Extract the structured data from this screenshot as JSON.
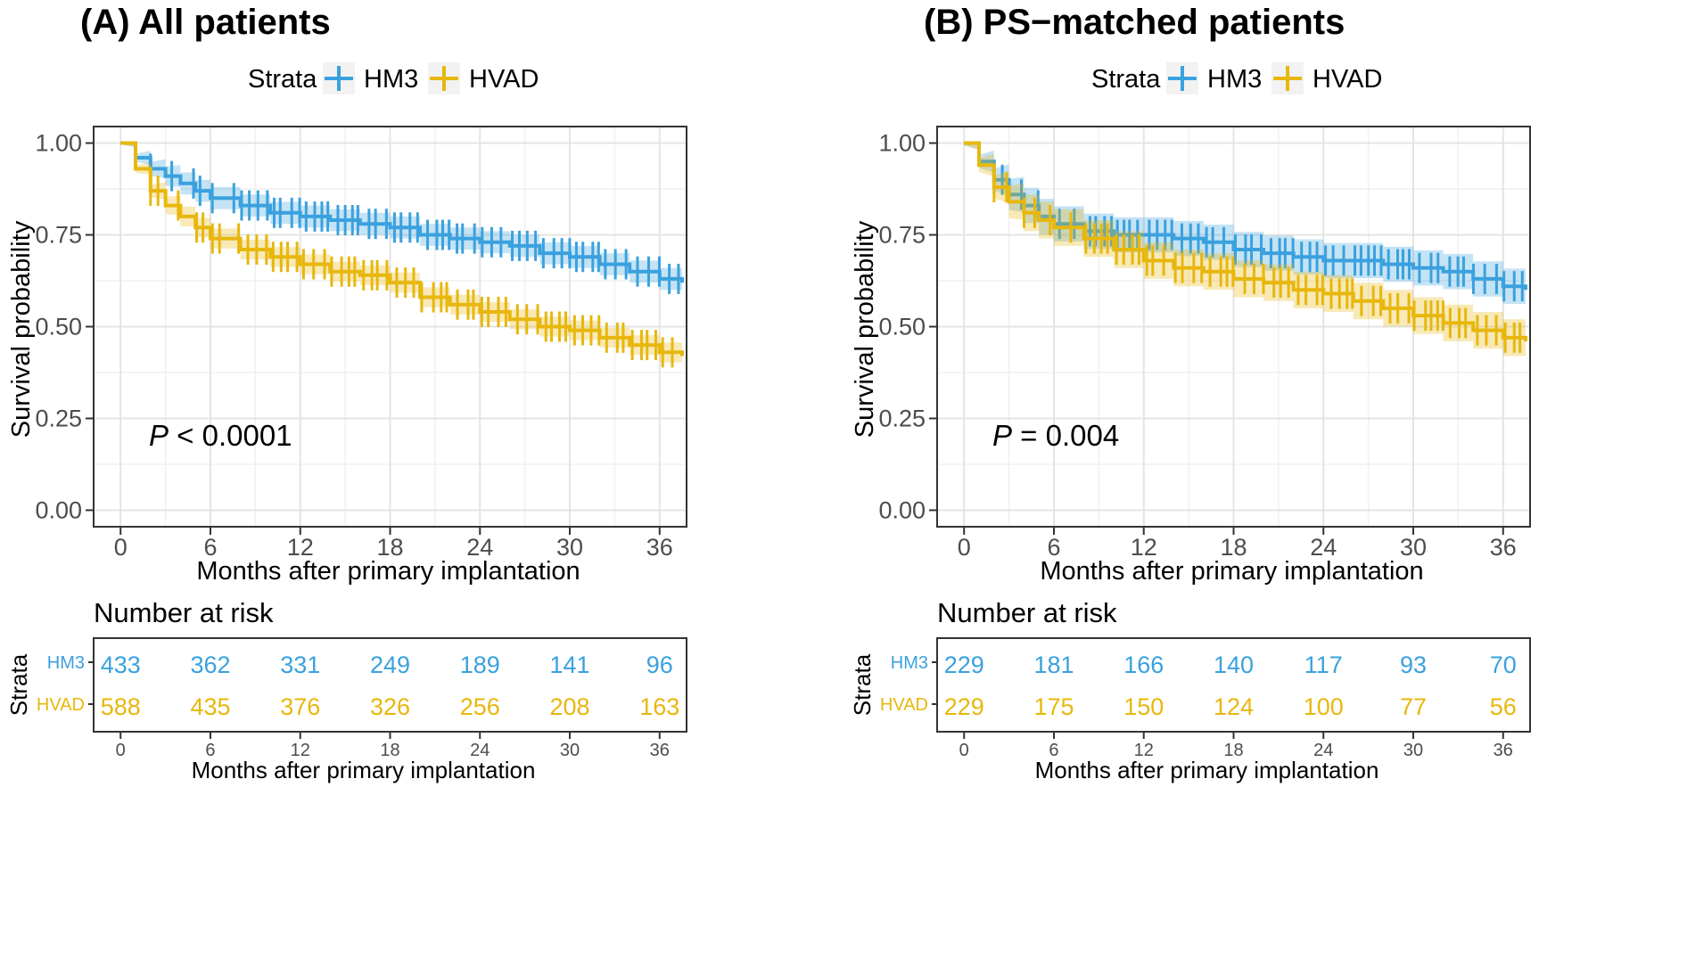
{
  "colors": {
    "hm3": "#3AA1DE",
    "hvad": "#E8B70D",
    "grid": "#e6e6e6",
    "panel_border": "#333333"
  },
  "chart_data": [
    {
      "type": "line",
      "title": "(A) All patients",
      "xlabel": "Months after primary implantation",
      "ylabel": "Survival probability",
      "xlim": [
        0,
        37.5
      ],
      "ylim": [
        0,
        1
      ],
      "x_ticks": [
        0,
        6,
        12,
        18,
        24,
        30,
        36
      ],
      "y_ticks": [
        "0.00",
        "0.25",
        "0.50",
        "0.75",
        "1.00"
      ],
      "grid": true,
      "legend": {
        "title": "Strata",
        "position": "top",
        "entries": [
          "HM3",
          "HVAD"
        ]
      },
      "annotation": {
        "italic": "P",
        "text": " < 0.0001"
      },
      "series": [
        {
          "name": "HM3",
          "color": "#3AA1DE",
          "x": [
            0,
            1,
            2,
            3,
            4,
            5,
            6,
            8,
            10,
            12,
            14,
            16,
            18,
            20,
            22,
            24,
            26,
            28,
            30,
            32,
            34,
            36,
            37.5
          ],
          "y": [
            1.0,
            0.96,
            0.93,
            0.91,
            0.89,
            0.87,
            0.85,
            0.83,
            0.81,
            0.8,
            0.79,
            0.78,
            0.77,
            0.75,
            0.74,
            0.73,
            0.72,
            0.7,
            0.69,
            0.67,
            0.65,
            0.63,
            0.62
          ],
          "ci_halfwidth": 0.03
        },
        {
          "name": "HVAD",
          "color": "#E8B70D",
          "x": [
            0,
            1,
            2,
            3,
            4,
            5,
            6,
            8,
            10,
            12,
            14,
            16,
            18,
            20,
            22,
            24,
            26,
            28,
            30,
            32,
            34,
            36,
            37.5
          ],
          "y": [
            1.0,
            0.93,
            0.87,
            0.83,
            0.8,
            0.77,
            0.74,
            0.71,
            0.69,
            0.67,
            0.65,
            0.64,
            0.62,
            0.58,
            0.56,
            0.54,
            0.52,
            0.5,
            0.49,
            0.47,
            0.45,
            0.43,
            0.42
          ],
          "ci_halfwidth": 0.027
        }
      ]
    },
    {
      "type": "line",
      "title": "(B) PS−matched patients",
      "xlabel": "Months after primary implantation",
      "ylabel": "Survival probability",
      "xlim": [
        0,
        37.5
      ],
      "ylim": [
        0,
        1
      ],
      "x_ticks": [
        0,
        6,
        12,
        18,
        24,
        30,
        36
      ],
      "y_ticks": [
        "0.00",
        "0.25",
        "0.50",
        "0.75",
        "1.00"
      ],
      "grid": true,
      "legend": {
        "title": "Strata",
        "position": "top",
        "entries": [
          "HM3",
          "HVAD"
        ]
      },
      "annotation": {
        "italic": "P",
        "text": " = 0.004"
      },
      "series": [
        {
          "name": "HM3",
          "color": "#3AA1DE",
          "x": [
            0,
            1,
            2,
            3,
            4,
            5,
            6,
            8,
            10,
            12,
            14,
            16,
            18,
            20,
            22,
            24,
            26,
            28,
            30,
            32,
            34,
            36,
            37.5
          ],
          "y": [
            1.0,
            0.95,
            0.9,
            0.86,
            0.83,
            0.8,
            0.78,
            0.76,
            0.75,
            0.75,
            0.74,
            0.73,
            0.71,
            0.7,
            0.69,
            0.68,
            0.68,
            0.67,
            0.66,
            0.65,
            0.63,
            0.61,
            0.6
          ],
          "ci_halfwidth": 0.048
        },
        {
          "name": "HVAD",
          "color": "#E8B70D",
          "x": [
            0,
            1,
            2,
            3,
            4,
            5,
            6,
            8,
            10,
            12,
            14,
            16,
            18,
            20,
            22,
            24,
            26,
            28,
            30,
            32,
            34,
            36,
            37.5
          ],
          "y": [
            1.0,
            0.94,
            0.88,
            0.84,
            0.81,
            0.79,
            0.77,
            0.74,
            0.71,
            0.68,
            0.66,
            0.65,
            0.63,
            0.62,
            0.6,
            0.59,
            0.57,
            0.55,
            0.53,
            0.51,
            0.49,
            0.47,
            0.46
          ],
          "ci_halfwidth": 0.05
        }
      ]
    }
  ],
  "risk_tables": [
    {
      "title": "Number at risk",
      "ylabel": "Strata",
      "xlabel": "Months after primary implantation",
      "x_ticks": [
        0,
        6,
        12,
        18,
        24,
        30,
        36
      ],
      "rows": [
        {
          "label": "HM3",
          "values": [
            "433",
            "362",
            "331",
            "249",
            "189",
            "141",
            "96"
          ]
        },
        {
          "label": "HVAD",
          "values": [
            "588",
            "435",
            "376",
            "326",
            "256",
            "208",
            "163"
          ]
        }
      ]
    },
    {
      "title": "Number at risk",
      "ylabel": "Strata",
      "xlabel": "Months after primary implantation",
      "x_ticks": [
        0,
        6,
        12,
        18,
        24,
        30,
        36
      ],
      "rows": [
        {
          "label": "HM3",
          "values": [
            "229",
            "181",
            "166",
            "140",
            "117",
            "93",
            "70"
          ]
        },
        {
          "label": "HVAD",
          "values": [
            "229",
            "175",
            "150",
            "124",
            "100",
            "77",
            "56"
          ]
        }
      ]
    }
  ]
}
